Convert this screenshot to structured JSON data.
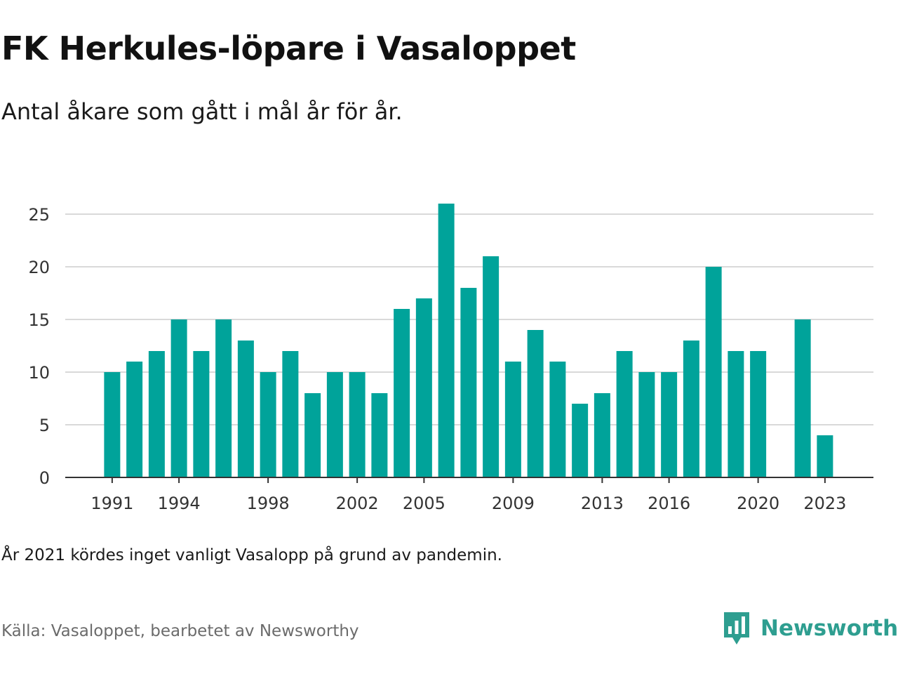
{
  "title": "FK Herkules-löpare i Vasaloppet",
  "subtitle": "Antal åkare som gått i mål år för år.",
  "note": "År 2021 kördes inget vanligt Vasalopp på grund av pandemin.",
  "source": "Källa: Vasaloppet, bearbetet av Newsworthy",
  "brand": {
    "name": "Newsworthy",
    "icon": "newsworthy-logo-icon",
    "color": "#2e9e90"
  },
  "colors": {
    "bar": "#00a39a",
    "grid": "#d9d9d9",
    "axis": "#333333",
    "tick_text": "#333333"
  },
  "chart_data": {
    "type": "bar",
    "title": "FK Herkules-löpare i Vasaloppet",
    "subtitle": "Antal åkare som gått i mål år för år.",
    "xlabel": "",
    "ylabel": "",
    "categories": [
      1991,
      1992,
      1993,
      1994,
      1995,
      1996,
      1997,
      1998,
      1999,
      2000,
      2001,
      2002,
      2003,
      2004,
      2005,
      2006,
      2007,
      2008,
      2009,
      2010,
      2011,
      2012,
      2013,
      2014,
      2015,
      2016,
      2017,
      2018,
      2019,
      2020,
      2021,
      2022,
      2023
    ],
    "values": [
      10,
      11,
      12,
      15,
      12,
      15,
      13,
      10,
      12,
      8,
      10,
      10,
      8,
      16,
      17,
      26,
      18,
      21,
      11,
      14,
      11,
      7,
      8,
      12,
      10,
      10,
      13,
      20,
      12,
      12,
      null,
      15,
      4
    ],
    "x_tick_labels": [
      "1991",
      "1994",
      "1998",
      "2002",
      "2005",
      "2009",
      "2013",
      "2016",
      "2020",
      "2023"
    ],
    "y_ticks": [
      0,
      5,
      10,
      15,
      20,
      25
    ],
    "ylim": [
      0,
      26
    ],
    "grid": true,
    "legend": "none"
  }
}
